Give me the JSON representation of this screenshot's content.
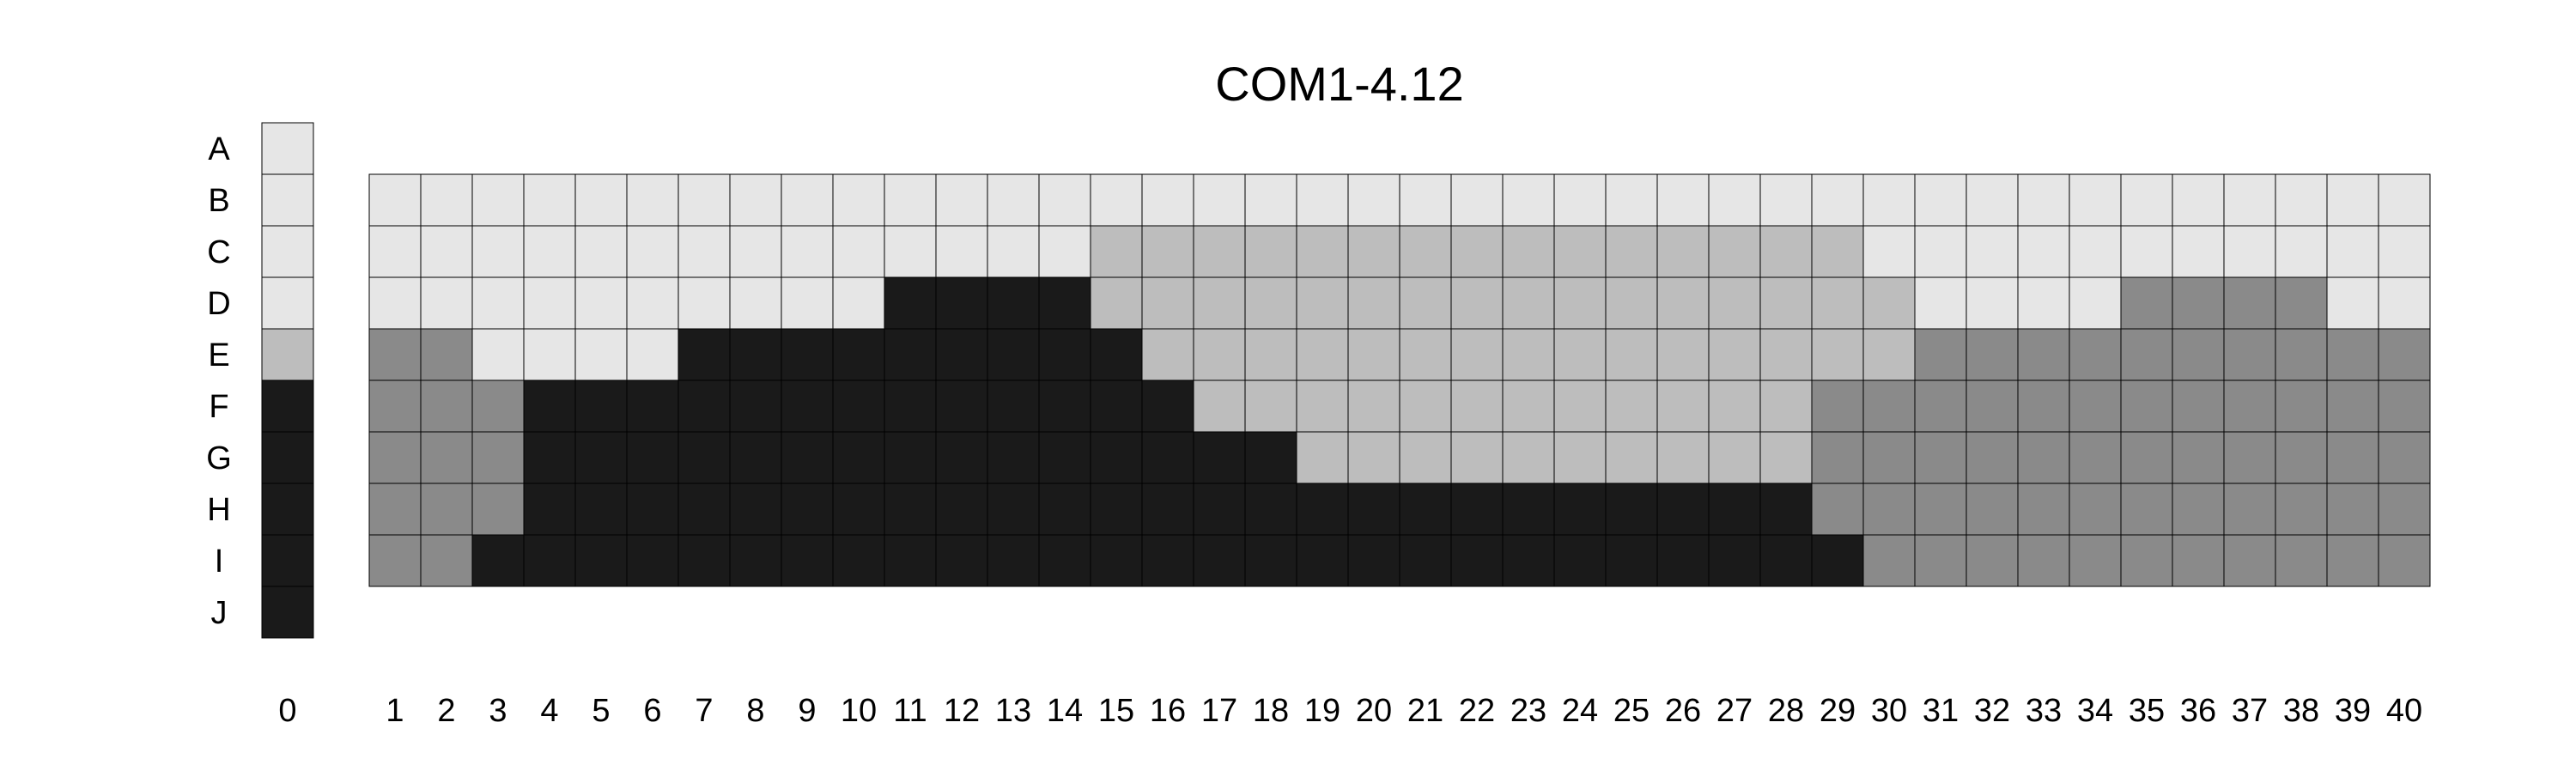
{
  "chart_data": {
    "type": "heatmap",
    "title": "COM1-4.12",
    "row_labels": [
      "A",
      "B",
      "C",
      "D",
      "E",
      "F",
      "G",
      "H",
      "I",
      "J"
    ],
    "column_labels": [
      "0",
      "1",
      "2",
      "3",
      "4",
      "5",
      "6",
      "7",
      "8",
      "9",
      "10",
      "11",
      "12",
      "13",
      "14",
      "15",
      "16",
      "17",
      "18",
      "19",
      "20",
      "21",
      "22",
      "23",
      "24",
      "25",
      "26",
      "27",
      "28",
      "29",
      "30",
      "31",
      "32",
      "33",
      "34",
      "35",
      "36",
      "37",
      "38",
      "39",
      "40"
    ],
    "palette": {
      "1": "#e6e6e6",
      "2": "#bdbdbd",
      "3": "#8a8a8a",
      "4": "#1a1a1a"
    },
    "reference_column": {
      "label": "0",
      "rows": [
        "A",
        "B",
        "C",
        "D",
        "E",
        "F",
        "G",
        "H",
        "I",
        "J"
      ],
      "values": [
        1,
        1,
        1,
        1,
        2,
        4,
        4,
        4,
        4,
        4
      ]
    },
    "grid": {
      "rows": [
        "B",
        "C",
        "D",
        "E",
        "F",
        "G",
        "H",
        "I"
      ],
      "columns": [
        1,
        2,
        3,
        4,
        5,
        6,
        7,
        8,
        9,
        10,
        11,
        12,
        13,
        14,
        15,
        16,
        17,
        18,
        19,
        20,
        21,
        22,
        23,
        24,
        25,
        26,
        27,
        28,
        29,
        30,
        31,
        32,
        33,
        34,
        35,
        36,
        37,
        38,
        39,
        40
      ],
      "values": [
        [
          1,
          1,
          1,
          1,
          1,
          1,
          1,
          1,
          1,
          1,
          1,
          1,
          1,
          1,
          1,
          1,
          1,
          1,
          1,
          1,
          1,
          1,
          1,
          1,
          1,
          1,
          1,
          1,
          1,
          1,
          1,
          1,
          1,
          1,
          1,
          1,
          1,
          1,
          1,
          1
        ],
        [
          1,
          1,
          1,
          1,
          1,
          1,
          1,
          1,
          1,
          1,
          1,
          1,
          1,
          1,
          2,
          2,
          2,
          2,
          2,
          2,
          2,
          2,
          2,
          2,
          2,
          2,
          2,
          2,
          2,
          1,
          1,
          1,
          1,
          1,
          1,
          1,
          1,
          1,
          1,
          1
        ],
        [
          1,
          1,
          1,
          1,
          1,
          1,
          1,
          1,
          1,
          1,
          4,
          4,
          4,
          4,
          2,
          2,
          2,
          2,
          2,
          2,
          2,
          2,
          2,
          2,
          2,
          2,
          2,
          2,
          2,
          2,
          1,
          1,
          1,
          1,
          3,
          3,
          3,
          3,
          1,
          1
        ],
        [
          3,
          3,
          1,
          1,
          1,
          1,
          4,
          4,
          4,
          4,
          4,
          4,
          4,
          4,
          4,
          2,
          2,
          2,
          2,
          2,
          2,
          2,
          2,
          2,
          2,
          2,
          2,
          2,
          2,
          2,
          3,
          3,
          3,
          3,
          3,
          3,
          3,
          3,
          3,
          3
        ],
        [
          3,
          3,
          3,
          4,
          4,
          4,
          4,
          4,
          4,
          4,
          4,
          4,
          4,
          4,
          4,
          4,
          2,
          2,
          2,
          2,
          2,
          2,
          2,
          2,
          2,
          2,
          2,
          2,
          3,
          3,
          3,
          3,
          3,
          3,
          3,
          3,
          3,
          3,
          3,
          3
        ],
        [
          3,
          3,
          3,
          4,
          4,
          4,
          4,
          4,
          4,
          4,
          4,
          4,
          4,
          4,
          4,
          4,
          4,
          4,
          2,
          2,
          2,
          2,
          2,
          2,
          2,
          2,
          2,
          2,
          3,
          3,
          3,
          3,
          3,
          3,
          3,
          3,
          3,
          3,
          3,
          3
        ],
        [
          3,
          3,
          3,
          4,
          4,
          4,
          4,
          4,
          4,
          4,
          4,
          4,
          4,
          4,
          4,
          4,
          4,
          4,
          4,
          4,
          4,
          4,
          4,
          4,
          4,
          4,
          4,
          4,
          3,
          3,
          3,
          3,
          3,
          3,
          3,
          3,
          3,
          3,
          3,
          3
        ],
        [
          3,
          3,
          4,
          4,
          4,
          4,
          4,
          4,
          4,
          4,
          4,
          4,
          4,
          4,
          4,
          4,
          4,
          4,
          4,
          4,
          4,
          4,
          4,
          4,
          4,
          4,
          4,
          4,
          4,
          3,
          3,
          3,
          3,
          3,
          3,
          3,
          3,
          3,
          3,
          3
        ]
      ]
    },
    "legend": "none",
    "grid_lines": true
  }
}
